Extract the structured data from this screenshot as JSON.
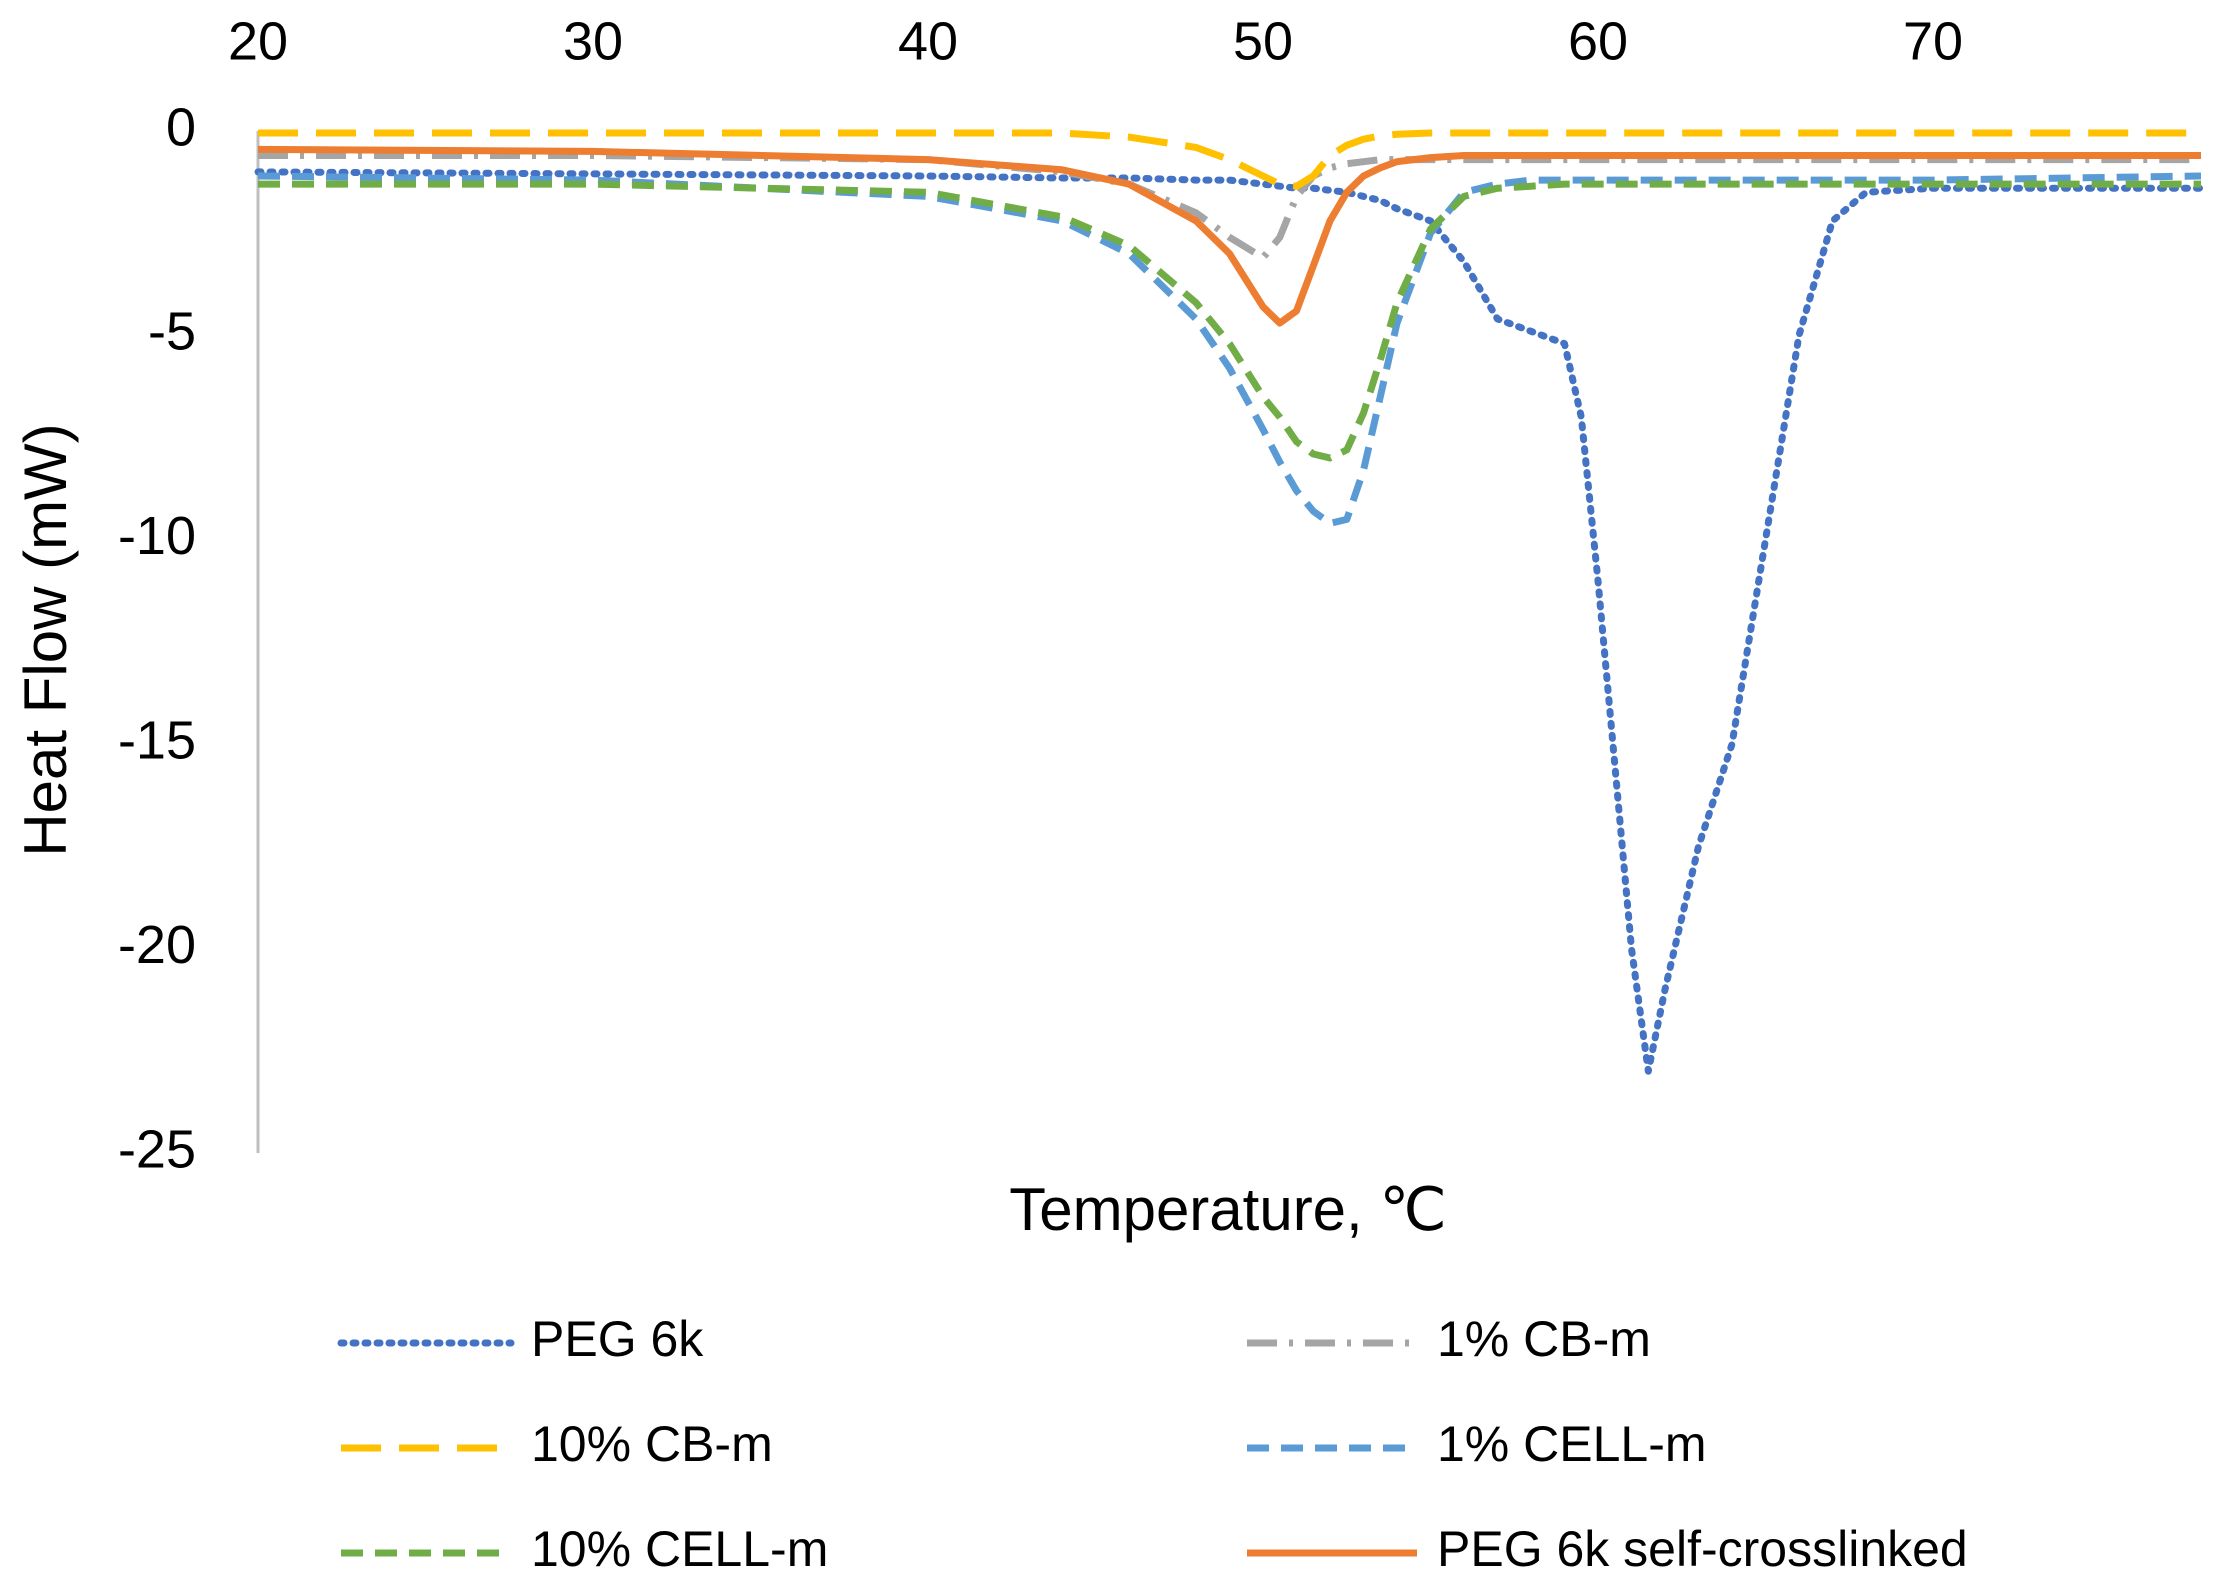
{
  "chart_data": {
    "type": "line",
    "x_label": "Temperature, ℃",
    "y_label": "Heat Flow (mW)",
    "x": [
      20,
      30,
      40,
      44,
      46,
      48,
      49,
      50,
      50.5,
      51,
      51.5,
      52,
      52.5,
      53,
      53.5,
      54,
      55,
      56,
      57,
      58,
      59,
      59.5,
      60,
      60.5,
      61,
      61.5,
      62,
      63,
      64,
      65,
      66,
      67,
      68,
      70,
      78
    ],
    "series": [
      {
        "name": "PEG 6k",
        "color": "#4472c4",
        "dash": "dotted",
        "values": [
          -1,
          -1.05,
          -1.1,
          -1.15,
          -1.15,
          -1.2,
          -1.2,
          -1.3,
          -1.35,
          -1.4,
          -1.4,
          -1.45,
          -1.5,
          -1.6,
          -1.7,
          -1.9,
          -2.2,
          -3.2,
          -4.6,
          -4.9,
          -5.2,
          -7,
          -11,
          -15.5,
          -20,
          -23,
          -21,
          -17.5,
          -15,
          -10,
          -5,
          -2.2,
          -1.5,
          -1.4,
          -1.4
        ]
      },
      {
        "name": "1% CB-m",
        "color": "#a5a5a5",
        "dash": "dash-dot",
        "values": [
          -0.6,
          -0.6,
          -0.7,
          -1.0,
          -1.3,
          -2.0,
          -2.6,
          -3.1,
          -2.6,
          -1.6,
          -1.1,
          -0.9,
          -0.8,
          -0.75,
          -0.7,
          -0.7,
          -0.7,
          -0.7,
          -0.7,
          -0.7,
          -0.7,
          -0.7,
          -0.7,
          -0.7,
          -0.7,
          -0.7,
          -0.7,
          -0.7,
          -0.7,
          -0.7,
          -0.7,
          -0.7,
          -0.7,
          -0.7,
          -0.7
        ]
      },
      {
        "name": "10% CB-m",
        "color": "#ffc000",
        "dash": "long-dash",
        "values": [
          -0.05,
          -0.05,
          -0.05,
          -0.05,
          -0.15,
          -0.4,
          -0.7,
          -1.1,
          -1.3,
          -1.35,
          -1.1,
          -0.6,
          -0.35,
          -0.2,
          -0.12,
          -0.08,
          -0.05,
          -0.05,
          -0.05,
          -0.05,
          -0.05,
          -0.05,
          -0.05,
          -0.05,
          -0.05,
          -0.05,
          -0.05,
          -0.05,
          -0.05,
          -0.05,
          -0.05,
          -0.05,
          -0.05,
          -0.05,
          -0.05
        ]
      },
      {
        "name": "1% CELL-m",
        "color": "#5b9bd5",
        "dash": "dash",
        "values": [
          -1.1,
          -1.2,
          -1.6,
          -2.2,
          -3.0,
          -4.6,
          -5.8,
          -7.3,
          -8.1,
          -8.8,
          -9.3,
          -9.6,
          -9.5,
          -8.3,
          -6.5,
          -4.7,
          -2.5,
          -1.5,
          -1.3,
          -1.2,
          -1.2,
          -1.2,
          -1.2,
          -1.2,
          -1.2,
          -1.2,
          -1.2,
          -1.2,
          -1.2,
          -1.2,
          -1.2,
          -1.2,
          -1.2,
          -1.2,
          -1.1
        ]
      },
      {
        "name": "10% CELL-m",
        "color": "#70ad47",
        "dash": "dash",
        "values": [
          -1.3,
          -1.3,
          -1.5,
          -2.1,
          -2.8,
          -4.2,
          -5.2,
          -6.5,
          -7.0,
          -7.6,
          -7.9,
          -8.0,
          -7.8,
          -6.9,
          -5.6,
          -4.2,
          -2.4,
          -1.6,
          -1.4,
          -1.35,
          -1.3,
          -1.3,
          -1.3,
          -1.3,
          -1.3,
          -1.3,
          -1.3,
          -1.3,
          -1.3,
          -1.3,
          -1.3,
          -1.3,
          -1.3,
          -1.3,
          -1.3
        ]
      },
      {
        "name": "PEG 6k self-crosslinked",
        "color": "#ed7d31",
        "dash": "solid",
        "values": [
          -0.45,
          -0.5,
          -0.7,
          -0.95,
          -1.3,
          -2.2,
          -3,
          -4.3,
          -4.7,
          -4.4,
          -3.3,
          -2.2,
          -1.5,
          -1.1,
          -0.9,
          -0.75,
          -0.65,
          -0.6,
          -0.6,
          -0.6,
          -0.6,
          -0.6,
          -0.6,
          -0.6,
          -0.6,
          -0.6,
          -0.6,
          -0.6,
          -0.6,
          -0.6,
          -0.6,
          -0.6,
          -0.6,
          -0.6,
          -0.6
        ]
      }
    ],
    "xlim": [
      20,
      78
    ],
    "xticks": [
      20,
      30,
      40,
      50,
      60,
      70
    ],
    "ylim": [
      -25,
      0
    ],
    "yticks": [
      0,
      -5,
      -10,
      -15,
      -20,
      -25
    ],
    "grid": false,
    "x_axis_position": "top",
    "legend_position": "bottom"
  }
}
